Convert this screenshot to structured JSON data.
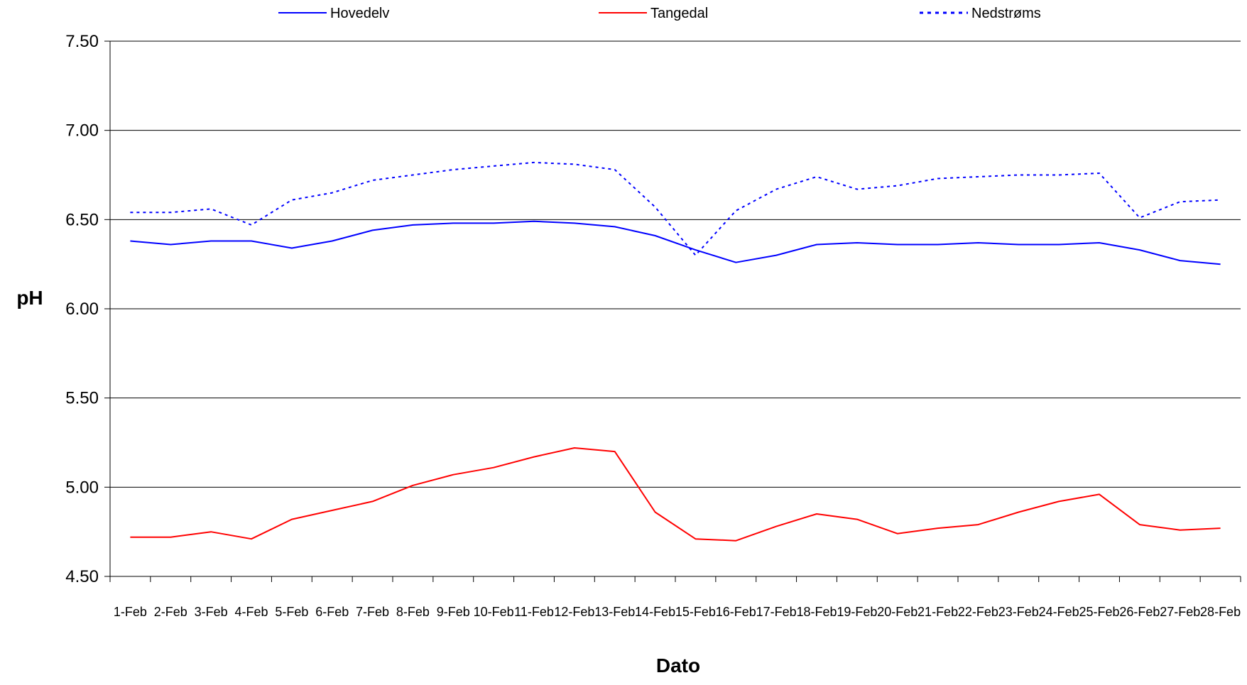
{
  "chart_data": {
    "type": "line",
    "title": "",
    "xlabel": "Dato",
    "ylabel": "pH",
    "ylim": [
      4.5,
      7.5
    ],
    "yticks": [
      "7.50",
      "7.00",
      "6.50",
      "6.00",
      "5.50",
      "5.00",
      "4.50"
    ],
    "grid": "horizontal",
    "legend_position": "top",
    "categories": [
      "1-Feb",
      "2-Feb",
      "3-Feb",
      "4-Feb",
      "5-Feb",
      "6-Feb",
      "7-Feb",
      "8-Feb",
      "9-Feb",
      "10-Feb",
      "11-Feb",
      "12-Feb",
      "13-Feb",
      "14-Feb",
      "15-Feb",
      "16-Feb",
      "17-Feb",
      "18-Feb",
      "19-Feb",
      "20-Feb",
      "21-Feb",
      "22-Feb",
      "23-Feb",
      "24-Feb",
      "25-Feb",
      "26-Feb",
      "27-Feb",
      "28-Feb"
    ],
    "series": [
      {
        "name": "Hovedelv",
        "color": "#0000ff",
        "dash": "solid",
        "values": [
          6.38,
          6.36,
          6.38,
          6.38,
          6.34,
          6.38,
          6.44,
          6.47,
          6.48,
          6.48,
          6.49,
          6.48,
          6.46,
          6.41,
          6.33,
          6.26,
          6.3,
          6.36,
          6.37,
          6.36,
          6.36,
          6.37,
          6.36,
          6.36,
          6.37,
          6.33,
          6.27,
          6.25
        ]
      },
      {
        "name": "Tangedal",
        "color": "#ff0000",
        "dash": "solid",
        "values": [
          4.72,
          4.72,
          4.75,
          4.71,
          4.82,
          4.87,
          4.92,
          5.01,
          5.07,
          5.11,
          5.17,
          5.22,
          5.2,
          4.86,
          4.71,
          4.7,
          4.78,
          4.85,
          4.82,
          4.74,
          4.77,
          4.79,
          4.86,
          4.92,
          4.96,
          4.79,
          4.76,
          4.77
        ]
      },
      {
        "name": "Nedstrøms",
        "color": "#0000ff",
        "dash": "dotted",
        "values": [
          6.54,
          6.54,
          6.56,
          6.47,
          6.61,
          6.65,
          6.72,
          6.75,
          6.78,
          6.8,
          6.82,
          6.81,
          6.78,
          6.57,
          6.3,
          6.55,
          6.67,
          6.74,
          6.67,
          6.69,
          6.73,
          6.74,
          6.75,
          6.75,
          6.76,
          6.51,
          6.6,
          6.61
        ]
      }
    ]
  }
}
